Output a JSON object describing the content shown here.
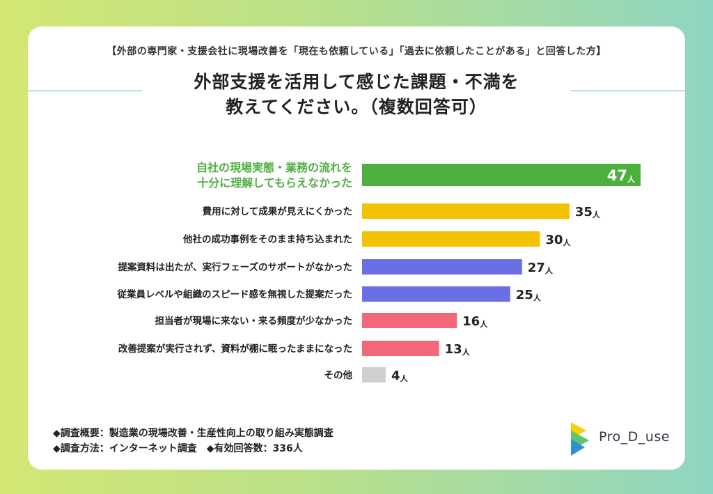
{
  "subtitle": "【外部の専門家・支援会社に現場改善を「現在も依頼している」「過去に依頼したことがある」と回答した方】",
  "title_line1": "外部支援を活用して感じた課題・不満を",
  "title_line2": "教えてください。（複数回答可）",
  "footer": {
    "line1": "◆調査概要：製造業の現場改善・生産性向上の取り組み実態調査",
    "line2": "◆調査方法：インターネット調査　◆有効回答数：336人"
  },
  "logo_text": "Pro_D_use",
  "colors": {
    "highlight": "#4caf3e",
    "yellow": "#f2c200",
    "blue": "#6b6fe5",
    "red": "#f2687a",
    "gray": "#d0d0d0"
  },
  "chart_data": {
    "type": "bar",
    "orientation": "horizontal",
    "unit": "人",
    "categories": [
      [
        "自社の現場実態・業務の流れを",
        "十分に理解してもらえなかった"
      ],
      [
        "費用に対して成果が見えにくかった"
      ],
      [
        "他社の成功事例をそのまま持ち込まれた"
      ],
      [
        "提案資料は出たが、実行フェーズのサポートがなかった"
      ],
      [
        "従業員レベルや組織のスピード感を無視した提案だった"
      ],
      [
        "担当者が現場に来ない・来る頻度が少なかった"
      ],
      [
        "改善提案が実行されず、資料が棚に眠ったままになった"
      ],
      [
        "その他"
      ]
    ],
    "values": [
      47,
      35,
      30,
      27,
      25,
      16,
      13,
      4
    ],
    "bar_colors": [
      "#4caf3e",
      "#f2c200",
      "#f2c200",
      "#6b6fe5",
      "#6b6fe5",
      "#f2687a",
      "#f2687a",
      "#d0d0d0"
    ],
    "highlight_index": 0,
    "title": "",
    "xlabel": "",
    "ylabel": ""
  }
}
